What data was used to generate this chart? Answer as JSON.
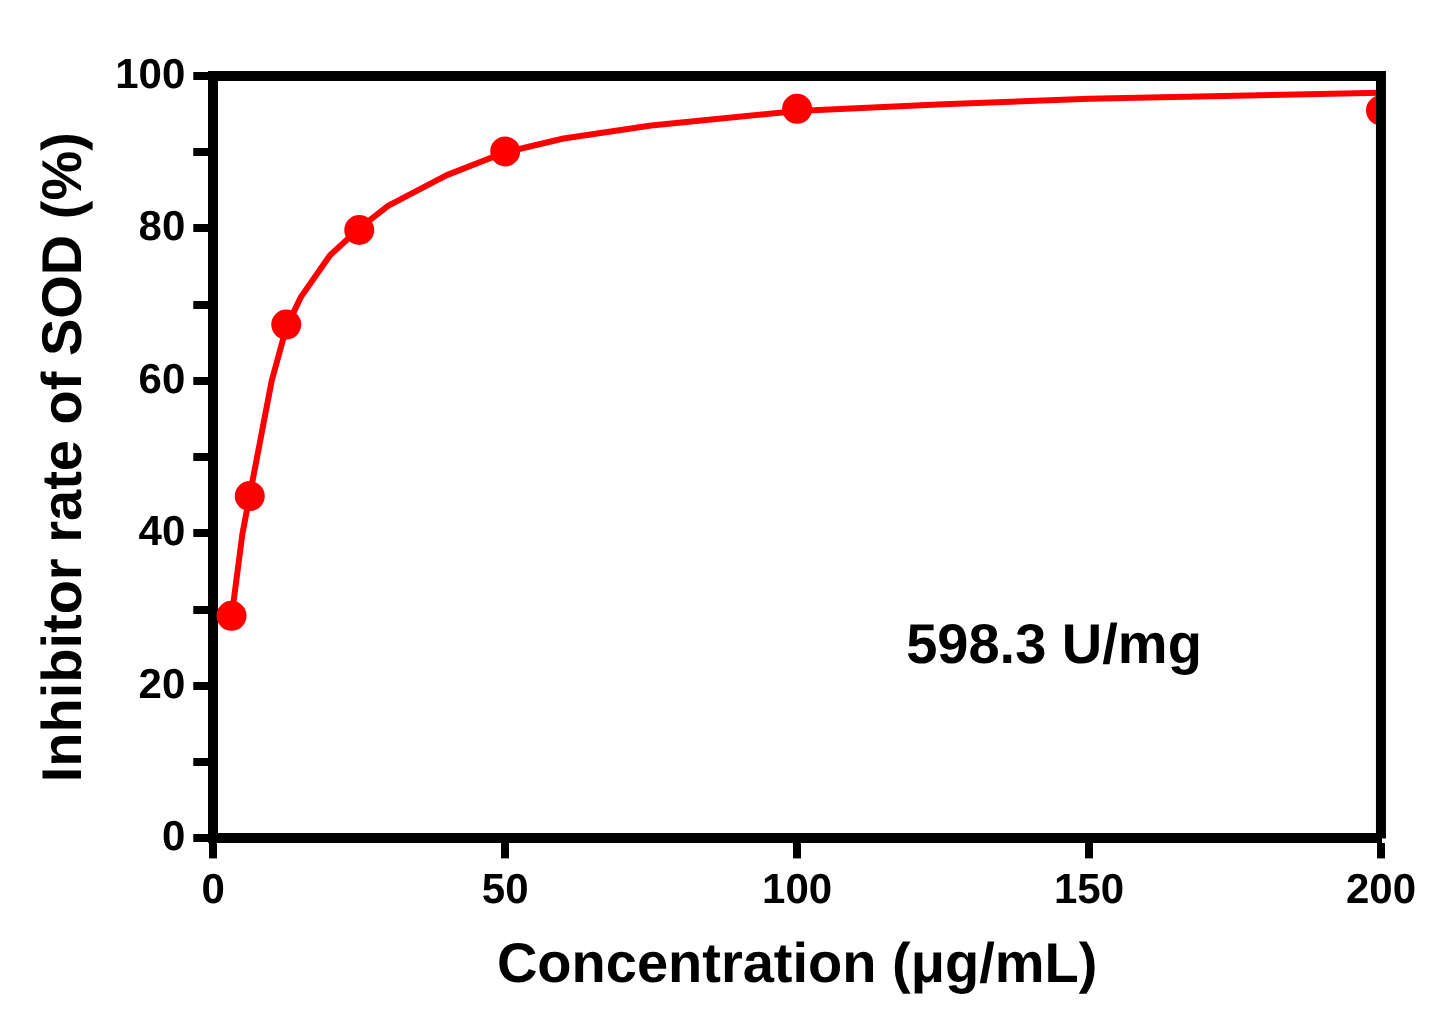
{
  "chart_data": {
    "type": "scatter",
    "xlabel": "Concentration (μg/mL)",
    "ylabel": "Inhibitor rate of SOD (%)",
    "xlim": [
      0,
      200
    ],
    "xticks": [
      0,
      50,
      100,
      150,
      200
    ],
    "ylim": [
      0,
      100
    ],
    "yticks": [
      0,
      {
        "value": 10,
        "label": null
      },
      20,
      {
        "value": 30,
        "label": null
      },
      40,
      {
        "value": 50,
        "label": null
      },
      60,
      {
        "value": 70,
        "label": null
      },
      80,
      {
        "value": 90,
        "label": null
      },
      100
    ],
    "grid": false,
    "legend": false,
    "marker": "circle",
    "annotations": [
      "598.3 U/mg"
    ],
    "series": [
      {
        "type": "scatter",
        "color": "#ff0000",
        "x": [
          3.125,
          6.25,
          12.5,
          25,
          50,
          100,
          200
        ],
        "values": [
          29.2,
          44.9,
          67.4,
          79.8,
          90.1,
          95.7,
          95.5
        ]
      },
      {
        "type": "line",
        "color": "#ff0000",
        "marker": "none",
        "x": [
          3.125,
          5,
          6.25,
          8,
          10,
          12.5,
          15,
          20,
          25,
          30,
          40,
          50,
          60,
          75,
          100,
          125,
          150,
          175,
          200
        ],
        "values": [
          29,
          40,
          45,
          52,
          60,
          67,
          71,
          76.5,
          80,
          83,
          87,
          90,
          91.8,
          93.5,
          95.4,
          96.3,
          97,
          97.4,
          97.8
        ]
      }
    ]
  }
}
